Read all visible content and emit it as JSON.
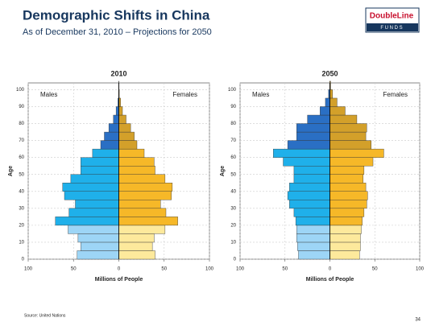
{
  "header": {
    "title": "Demographic Shifts in China",
    "subtitle": "As of December 31, 2010 – Projections for 2050",
    "logo": "DoubleLine",
    "logo_sub": "F U N D S"
  },
  "footer": {
    "source": "Source: United Nations",
    "page": "34"
  },
  "chart_data": [
    {
      "type": "pyramid",
      "title": "2010",
      "xlabel": "Millions of People",
      "ylabel": "Age",
      "grid": true,
      "y": [
        0,
        5,
        10,
        15,
        20,
        25,
        30,
        35,
        40,
        45,
        50,
        55,
        60,
        65,
        70,
        75,
        80,
        85,
        90,
        95,
        100
      ],
      "band": 5,
      "xlim": [
        -100,
        100
      ],
      "xticks": [
        {
          "value": -100,
          "label": "100"
        },
        {
          "value": -50,
          "label": "50"
        },
        0,
        50,
        100
      ],
      "ylim": [
        0,
        104
      ],
      "yticks": [
        0,
        10,
        20,
        30,
        40,
        50,
        60,
        70,
        80,
        90,
        100
      ],
      "series": [
        {
          "name": "Males",
          "direction": "left",
          "values": [
            46,
            42,
            45,
            56,
            70,
            55,
            48,
            60,
            62,
            53,
            42,
            42,
            29,
            20,
            16,
            11,
            6,
            3,
            1,
            0.3,
            0.1
          ],
          "colors": [
            "#9dd5f6",
            "#9dd5f6",
            "#9dd5f6",
            "#9dd5f6",
            "#1fb0ea",
            "#1fb0ea",
            "#1fb0ea",
            "#1fb0ea",
            "#1fb0ea",
            "#1fb0ea",
            "#1fb0ea",
            "#1fb0ea",
            "#1fb0ea",
            "#2a6fc4",
            "#2a6fc4",
            "#2a6fc4",
            "#2a6fc4",
            "#2a6fc4",
            "#2a6fc4",
            "#2a6fc4",
            "#2a6fc4"
          ]
        },
        {
          "name": "Females",
          "direction": "right",
          "values": [
            40,
            37,
            39,
            51,
            65,
            52,
            46,
            58,
            59,
            51,
            40,
            39,
            28,
            20,
            17,
            13,
            8,
            4,
            2,
            0.5,
            0.1
          ],
          "colors": [
            "#fde99c",
            "#fde99c",
            "#fde99c",
            "#fde99c",
            "#f6b828",
            "#f6b828",
            "#f6b828",
            "#f6b828",
            "#f6b828",
            "#f6b828",
            "#f6b828",
            "#f6b828",
            "#f6b828",
            "#d3a02a",
            "#d3a02a",
            "#d3a02a",
            "#d3a02a",
            "#d3a02a",
            "#d3a02a",
            "#d3a02a",
            "#d3a02a"
          ]
        }
      ]
    },
    {
      "type": "pyramid",
      "title": "2050",
      "xlabel": "Millions of People",
      "ylabel": "Age",
      "grid": true,
      "y": [
        0,
        5,
        10,
        15,
        20,
        25,
        30,
        35,
        40,
        45,
        50,
        55,
        60,
        65,
        70,
        75,
        80,
        85,
        90,
        95,
        100
      ],
      "band": 5,
      "xlim": [
        -100,
        100
      ],
      "xticks": [
        {
          "value": -100,
          "label": "100"
        },
        {
          "value": -50,
          "label": "50"
        },
        0,
        50,
        100
      ],
      "ylim": [
        0,
        104
      ],
      "yticks": [
        0,
        10,
        20,
        30,
        40,
        50,
        60,
        70,
        80,
        90,
        100
      ],
      "series": [
        {
          "name": "Males",
          "direction": "left",
          "values": [
            35,
            36,
            37,
            37,
            38,
            40,
            45,
            47,
            45,
            40,
            40,
            52,
            63,
            47,
            37,
            37,
            25,
            11,
            5,
            1.5,
            0.3
          ],
          "colors": [
            "#9dd5f6",
            "#9dd5f6",
            "#9dd5f6",
            "#9dd5f6",
            "#1fb0ea",
            "#1fb0ea",
            "#1fb0ea",
            "#1fb0ea",
            "#1fb0ea",
            "#1fb0ea",
            "#1fb0ea",
            "#1fb0ea",
            "#1fb0ea",
            "#2a6fc4",
            "#2a6fc4",
            "#2a6fc4",
            "#2a6fc4",
            "#2a6fc4",
            "#2a6fc4",
            "#2a6fc4",
            "#2a6fc4"
          ]
        },
        {
          "name": "Females",
          "direction": "right",
          "values": [
            33,
            34,
            34,
            35,
            36,
            38,
            41,
            42,
            40,
            37,
            38,
            48,
            60,
            46,
            40,
            41,
            30,
            17,
            8,
            3,
            0.8
          ],
          "colors": [
            "#fde99c",
            "#fde99c",
            "#fde99c",
            "#fde99c",
            "#f6b828",
            "#f6b828",
            "#f6b828",
            "#f6b828",
            "#f6b828",
            "#f6b828",
            "#f6b828",
            "#f6b828",
            "#f6b828",
            "#d3a02a",
            "#d3a02a",
            "#d3a02a",
            "#d3a02a",
            "#d3a02a",
            "#d3a02a",
            "#d3a02a",
            "#d3a02a"
          ]
        }
      ]
    }
  ]
}
